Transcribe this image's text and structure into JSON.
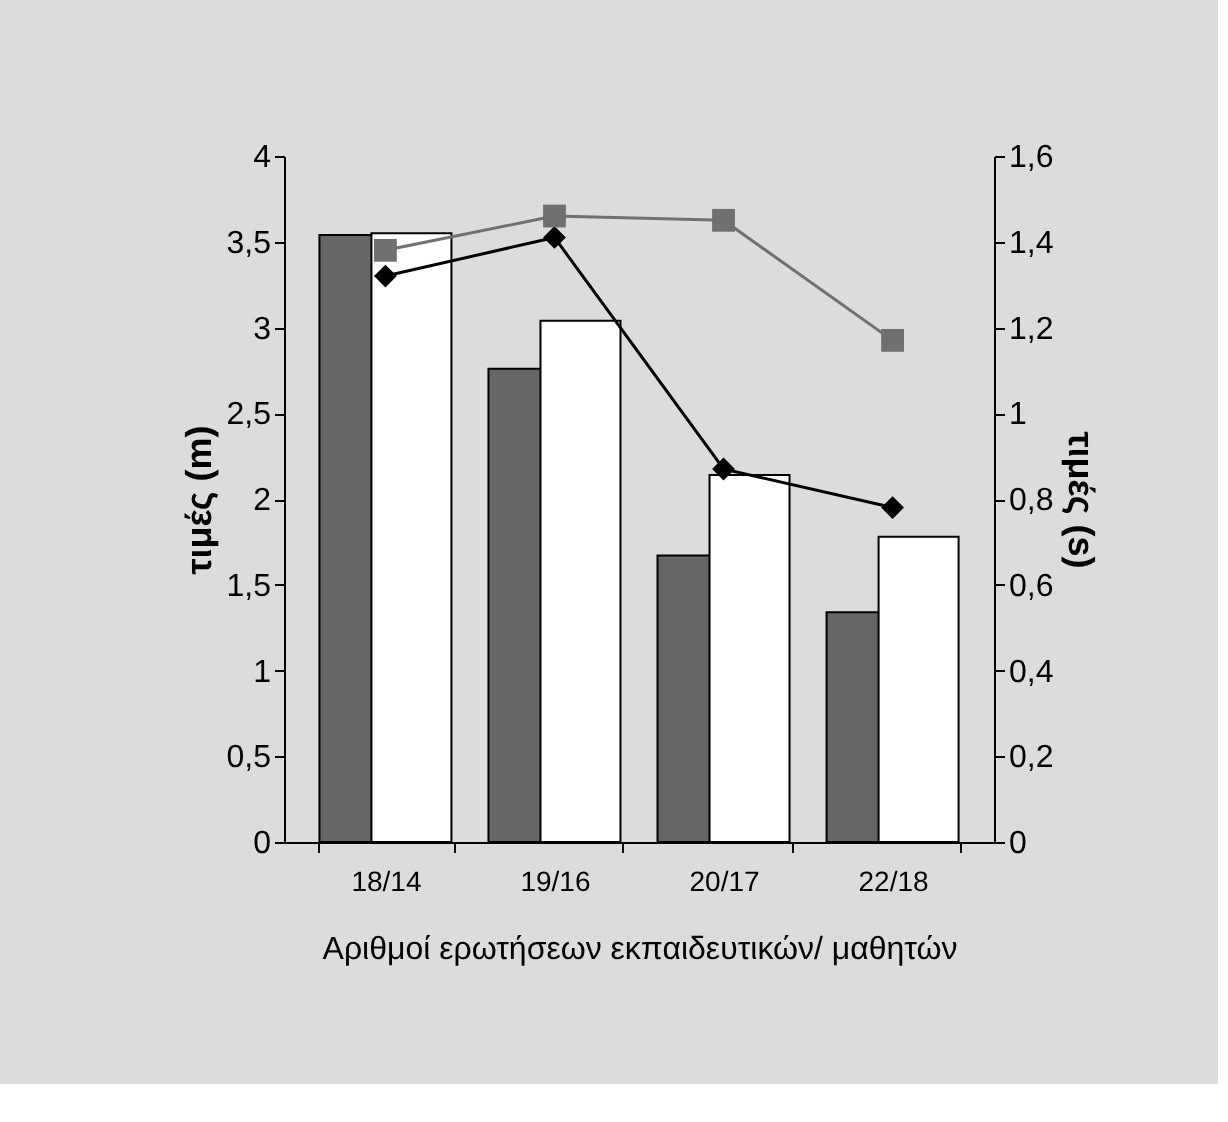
{
  "chart_data": {
    "type": "bar",
    "xlabel": "Αριθμοί ερωτήσεων εκπαιδευτικών/ μαθητών",
    "ylabel": "τιμές (m)",
    "y2label": "τιμές (s)",
    "categories": [
      "18/14",
      "19/16",
      "20/17",
      "22/18"
    ],
    "series": [
      {
        "color": "#666666",
        "values": [
          3.54,
          2.76,
          1.67,
          1.34
        ]
      },
      {
        "color": "#ffffff",
        "values": [
          3.55,
          3.04,
          2.14,
          1.78
        ]
      },
      {
        "type": "line",
        "axis": "y2",
        "marker": "diamond",
        "color": "#000000",
        "values": [
          1.32,
          1.41,
          0.87,
          0.78
        ]
      },
      {
        "type": "line",
        "axis": "y2",
        "marker": "square",
        "color": "#707070",
        "values": [
          1.38,
          1.46,
          1.45,
          1.17
        ]
      }
    ],
    "ylim": [
      0,
      4
    ],
    "yticks": [
      0,
      {
        "value": 0.5,
        "label": "0,5"
      },
      1,
      {
        "value": 1.5,
        "label": "1,5"
      },
      2,
      {
        "value": 2.5,
        "label": "2,5"
      },
      3,
      {
        "value": 3.5,
        "label": "3,5"
      },
      4
    ],
    "y2lim": [
      0,
      1.6
    ],
    "y2ticks": [
      0,
      {
        "value": 0.2,
        "label": "0,2"
      },
      {
        "value": 0.4,
        "label": "0,4"
      },
      {
        "value": 0.6,
        "label": "0,6"
      },
      {
        "value": 0.8,
        "label": "0,8"
      },
      1,
      {
        "value": 1.2,
        "label": "1,2"
      },
      {
        "value": 1.4,
        "label": "1,4"
      },
      {
        "value": 1.6,
        "label": "1,6"
      }
    ],
    "grid": false,
    "legend": false
  }
}
